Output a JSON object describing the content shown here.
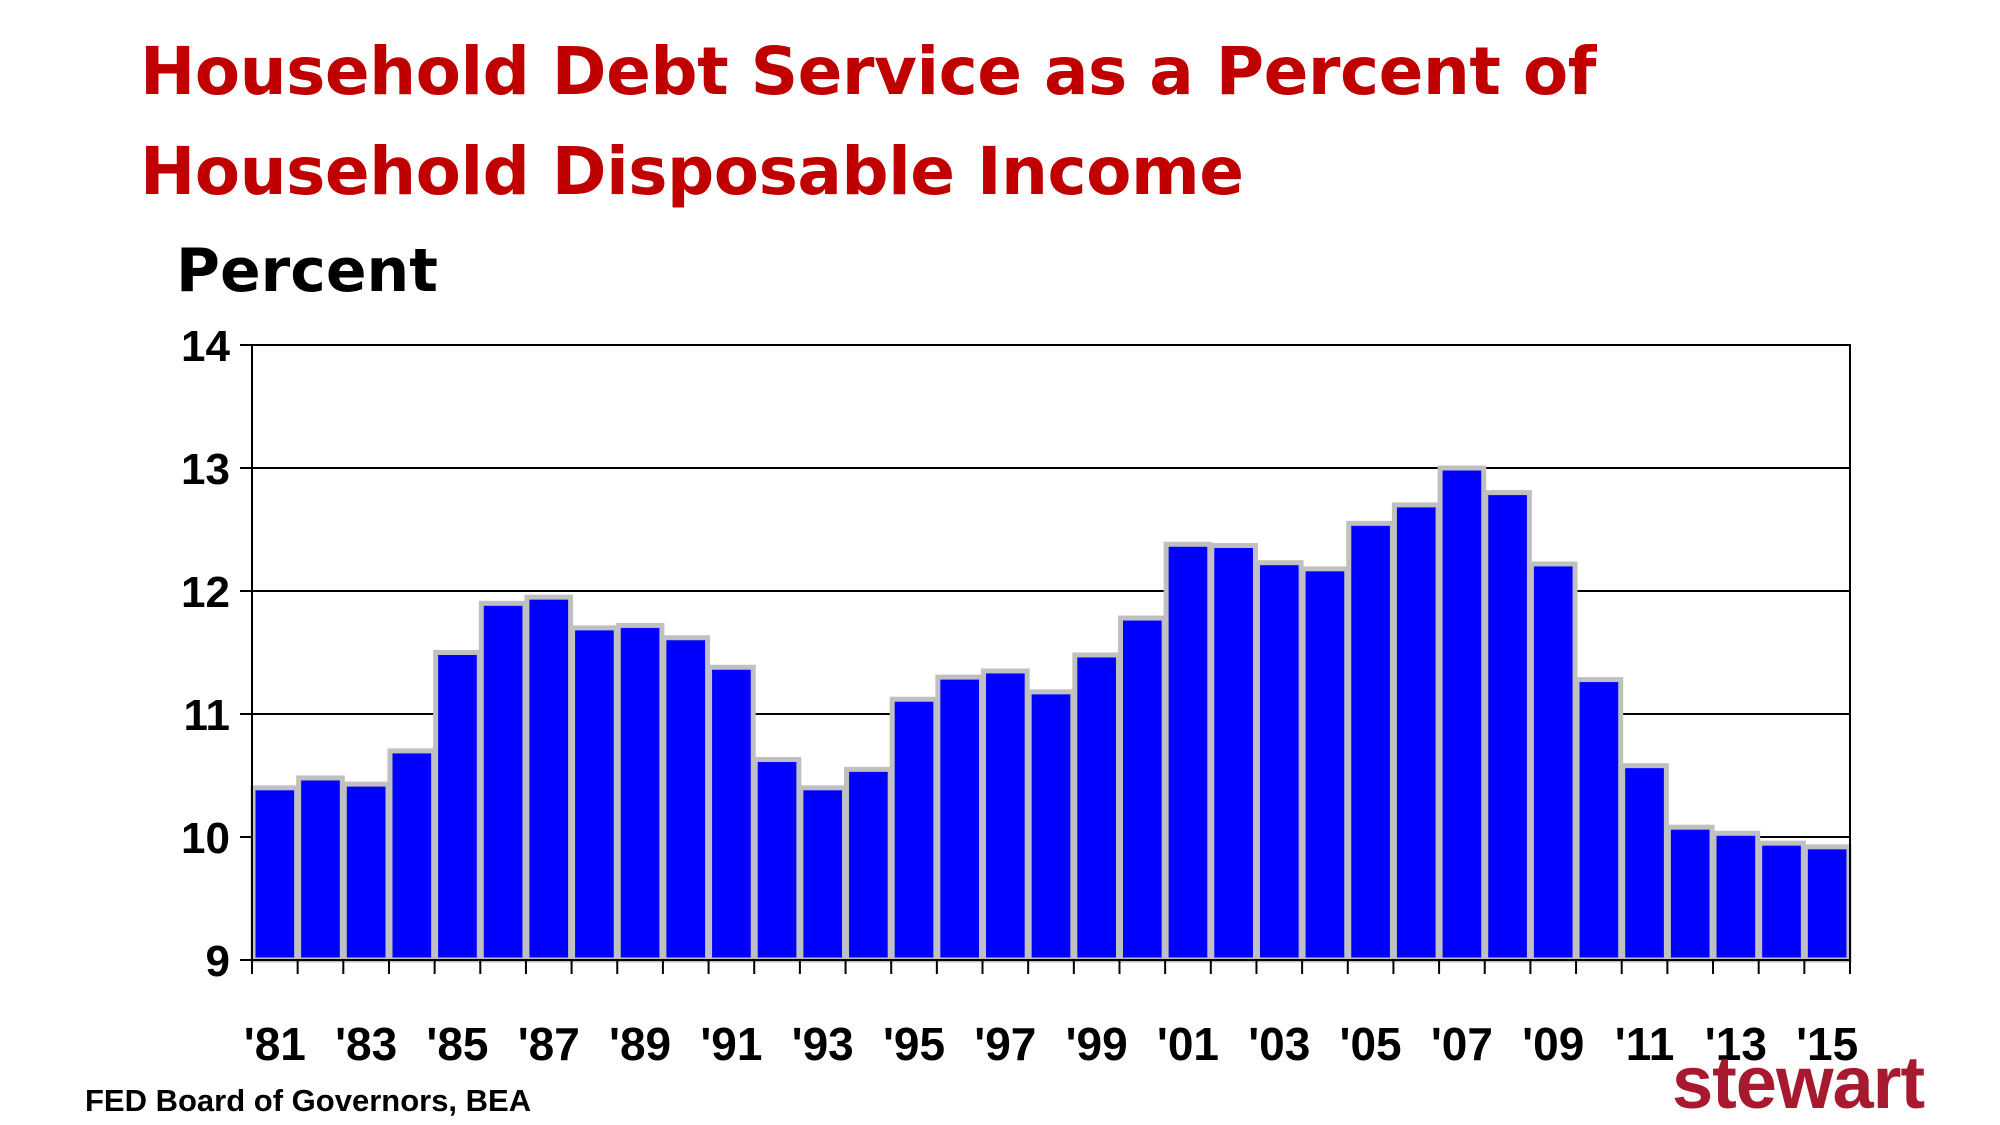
{
  "title": "Household Debt Service as a Percent of Household Disposable Income",
  "colors": {
    "title": "#c00000",
    "bar_fill": "#0000ff",
    "bar_edge": "#c0c0c0",
    "logo": "#a6192e"
  },
  "source": "FED Board of Governors,  BEA",
  "logo_text": "stewart",
  "chart_data": {
    "type": "bar",
    "title": "Household Debt Service as a Percent of Household Disposable Income",
    "xlabel": "",
    "ylabel": "Percent",
    "ylim": [
      9,
      14
    ],
    "yticks": [
      9,
      10,
      11,
      12,
      13,
      14
    ],
    "grid": true,
    "categories": [
      "'81",
      "'82",
      "'83",
      "'84",
      "'85",
      "'86",
      "'87",
      "'88",
      "'89",
      "'90",
      "'91",
      "'92",
      "'93",
      "'94",
      "'95",
      "'96",
      "'97",
      "'98",
      "'99",
      "'00",
      "'01",
      "'02",
      "'03",
      "'04",
      "'05",
      "'06",
      "'07",
      "'08",
      "'09",
      "'10",
      "'11",
      "'12",
      "'13",
      "'14",
      "'15"
    ],
    "xtick_labels": [
      "'81",
      "'83",
      "'85",
      "'87",
      "'89",
      "'91",
      "'93",
      "'95",
      "'97",
      "'99",
      "'01",
      "'03",
      "'05",
      "'07",
      "'09",
      "'11",
      "'13",
      "'15"
    ],
    "values": [
      10.4,
      10.48,
      10.43,
      10.7,
      11.5,
      11.9,
      11.95,
      11.7,
      11.72,
      11.62,
      11.38,
      10.63,
      10.4,
      10.55,
      11.12,
      11.3,
      11.35,
      11.18,
      11.48,
      11.78,
      12.38,
      12.37,
      12.23,
      12.18,
      12.55,
      12.7,
      13.0,
      12.8,
      12.22,
      11.28,
      10.58,
      10.08,
      10.03,
      9.95,
      9.92
    ]
  }
}
